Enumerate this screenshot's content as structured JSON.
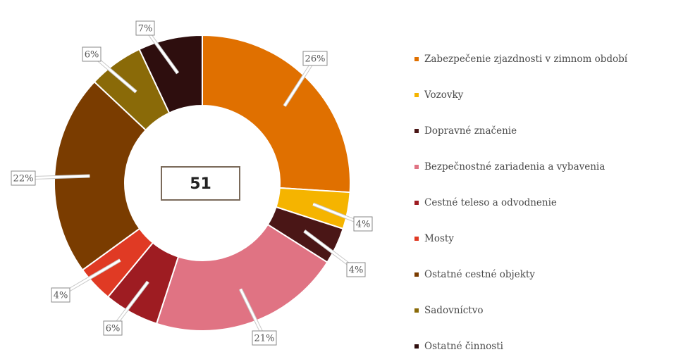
{
  "chart_data": {
    "type": "pie",
    "donut": true,
    "center_label": "51",
    "legend_position": "right",
    "slices": [
      {
        "name": "Zabezpečenie zjazdnosti v zimnom období",
        "value": 26,
        "label": "26%",
        "color": "#e07000"
      },
      {
        "name": "Vozovky",
        "value": 4,
        "label": "4%",
        "color": "#f5b400"
      },
      {
        "name": "Dopravné značenie",
        "value": 4,
        "label": "4%",
        "color": "#4a1616"
      },
      {
        "name": "Bezpečnostné zariadenia a vybavenia",
        "value": 21,
        "label": "21%",
        "color": "#e07383"
      },
      {
        "name": "Cestné teleso a odvodnenie",
        "value": 6,
        "label": "6%",
        "color": "#9e1c22"
      },
      {
        "name": "Mosty",
        "value": 4,
        "label": "4%",
        "color": "#e03a24"
      },
      {
        "name": "Ostatné cestné objekty",
        "value": 22,
        "label": "22%",
        "color": "#7a3c00"
      },
      {
        "name": "Sadovníctvo",
        "value": 6,
        "label": "6%",
        "color": "#8a6a08"
      },
      {
        "name": "Ostatné činnosti",
        "value": 7,
        "label": "7%",
        "color": "#2e0e0e"
      }
    ]
  }
}
